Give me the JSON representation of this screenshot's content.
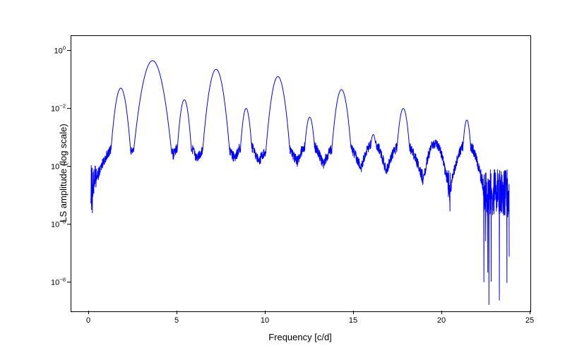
{
  "ls_spectrum": {
    "type": "line",
    "xlabel": "Frequency [c/d]",
    "ylabel": "LS amplitude (log scale)",
    "xlim": [
      -1,
      25
    ],
    "ylim_log10": [
      -9,
      0.5
    ],
    "xtick_step": 5,
    "xticks": [
      0,
      5,
      10,
      15,
      20,
      25
    ],
    "ytick_exponents": [
      -8,
      -6,
      -4,
      -2,
      0
    ],
    "line_color": "#0000ff",
    "background_color": "#ffffff",
    "border_color": "#000000",
    "tick_color": "#000000",
    "label_fontsize": 13,
    "tick_fontsize": 11,
    "noise_floor_log10": -4.8,
    "noise_spread_log10": 1.2,
    "peaks": [
      {
        "freq": 1.8,
        "amp_log10": -1.3,
        "width": 0.25
      },
      {
        "freq": 3.6,
        "amp_log10": -0.35,
        "width": 0.4
      },
      {
        "freq": 5.4,
        "amp_log10": -1.7,
        "width": 0.2
      },
      {
        "freq": 7.2,
        "amp_log10": -0.65,
        "width": 0.3
      },
      {
        "freq": 8.9,
        "amp_log10": -2.0,
        "width": 0.18
      },
      {
        "freq": 10.7,
        "amp_log10": -0.9,
        "width": 0.28
      },
      {
        "freq": 12.5,
        "amp_log10": -2.3,
        "width": 0.18
      },
      {
        "freq": 14.3,
        "amp_log10": -1.35,
        "width": 0.25
      },
      {
        "freq": 16.1,
        "amp_log10": -2.9,
        "width": 0.15
      },
      {
        "freq": 17.8,
        "amp_log10": -2.0,
        "width": 0.2
      },
      {
        "freq": 19.6,
        "amp_log10": -3.8,
        "width": 0.12
      },
      {
        "freq": 21.4,
        "amp_log10": -2.4,
        "width": 0.15
      }
    ],
    "freq_max_data": 23.8
  }
}
